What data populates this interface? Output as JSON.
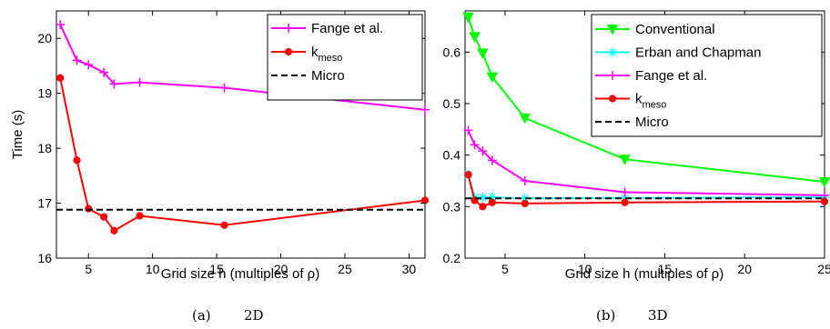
{
  "chart_data": [
    {
      "type": "line",
      "xlabel": "Grid size h (multiples of ρ)",
      "ylabel": "Time (s)",
      "xlim": [
        2.5,
        31.25
      ],
      "ylim": [
        16,
        20.5
      ],
      "xticks": [
        "5",
        "10",
        "15",
        "20",
        "25",
        "30"
      ],
      "yticks": [
        "16",
        "17",
        "18",
        "19",
        "20"
      ],
      "grid": false,
      "legend": "top-right",
      "caption": {
        "label": "(a)",
        "text": "2D"
      },
      "series": [
        {
          "name": "Fange et al.",
          "color": "#ff00ff",
          "marker": "plus",
          "x": [
            2.8,
            4.1,
            5.0,
            6.2,
            7.0,
            9.0,
            15.6,
            31.25
          ],
          "y": [
            20.25,
            19.6,
            19.52,
            19.38,
            19.17,
            19.2,
            19.1,
            18.7
          ]
        },
        {
          "name": "k",
          "name_sub": "meso",
          "color": "#ff0000",
          "marker": "dot",
          "x": [
            2.8,
            4.1,
            5.0,
            6.2,
            7.0,
            9.0,
            15.6,
            31.25
          ],
          "y": [
            19.28,
            17.78,
            16.9,
            16.75,
            16.5,
            16.77,
            16.6,
            17.05
          ]
        },
        {
          "name": "Micro",
          "color": "#000000",
          "style": "dashed",
          "x": [
            2.5,
            31.25
          ],
          "y": [
            16.88,
            16.88
          ]
        }
      ]
    },
    {
      "type": "line",
      "xlabel": "Grid size h (multiples of ρ)",
      "ylabel": "",
      "xlim": [
        2.5,
        25
      ],
      "ylim": [
        0.2,
        0.68
      ],
      "xticks": [
        "5",
        "10",
        "15",
        "20",
        "25"
      ],
      "yticks": [
        "0.2",
        "0.3",
        "0.4",
        "0.5",
        "0.6"
      ],
      "grid": false,
      "legend": "top-right",
      "caption": {
        "label": "(b)",
        "text": "3D"
      },
      "series": [
        {
          "name": "Conventional",
          "color": "#00ff00",
          "marker": "triangle-down",
          "x": [
            2.7,
            3.1,
            3.6,
            4.2,
            6.25,
            12.5,
            25
          ],
          "y": [
            0.668,
            0.63,
            0.598,
            0.552,
            0.472,
            0.392,
            0.348
          ]
        },
        {
          "name": "Erban and Chapman",
          "color": "#00ffff",
          "marker": "star",
          "x": [
            2.7,
            3.1,
            3.6,
            4.2,
            6.25,
            12.5,
            25
          ],
          "y": [
            0.362,
            0.318,
            0.318,
            0.318,
            0.316,
            0.317,
            0.318
          ]
        },
        {
          "name": "Fange et al.",
          "color": "#ff00ff",
          "marker": "plus",
          "x": [
            2.7,
            3.1,
            3.6,
            4.2,
            6.25,
            12.5,
            25
          ],
          "y": [
            0.448,
            0.42,
            0.408,
            0.39,
            0.35,
            0.328,
            0.322
          ]
        },
        {
          "name": "k",
          "name_sub": "meso",
          "color": "#ff0000",
          "marker": "dot",
          "x": [
            2.7,
            3.1,
            3.6,
            4.2,
            6.25,
            12.5,
            25
          ],
          "y": [
            0.362,
            0.312,
            0.3,
            0.308,
            0.306,
            0.308,
            0.31
          ]
        },
        {
          "name": "Micro",
          "color": "#000000",
          "style": "dashed",
          "x": [
            2.5,
            25
          ],
          "y": [
            0.316,
            0.316
          ]
        }
      ]
    }
  ]
}
